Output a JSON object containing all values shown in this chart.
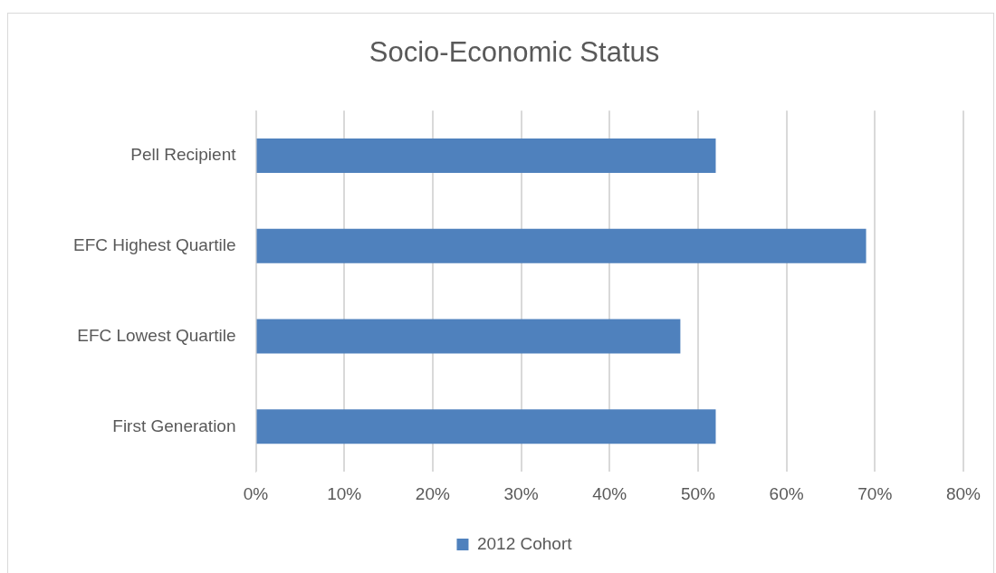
{
  "chart_data": {
    "type": "bar",
    "orientation": "horizontal",
    "title": "Socio-Economic Status",
    "categories": [
      "Pell Recipient",
      "EFC Highest Quartile",
      "EFC Lowest Quartile",
      "First Generation"
    ],
    "series": [
      {
        "name": "2012 Cohort",
        "color": "#4f81bd",
        "values": [
          52,
          69,
          48,
          52
        ]
      }
    ],
    "xlim": [
      0,
      80
    ],
    "xticks": [
      {
        "value": 0,
        "label": "0%"
      },
      {
        "value": 10,
        "label": "10%"
      },
      {
        "value": 20,
        "label": "20%"
      },
      {
        "value": 30,
        "label": "30%"
      },
      {
        "value": 40,
        "label": "40%"
      },
      {
        "value": 50,
        "label": "50%"
      },
      {
        "value": 60,
        "label": "60%"
      },
      {
        "value": 70,
        "label": "70%"
      },
      {
        "value": 80,
        "label": "80%"
      }
    ],
    "grid": "x",
    "legend": "bottom"
  }
}
